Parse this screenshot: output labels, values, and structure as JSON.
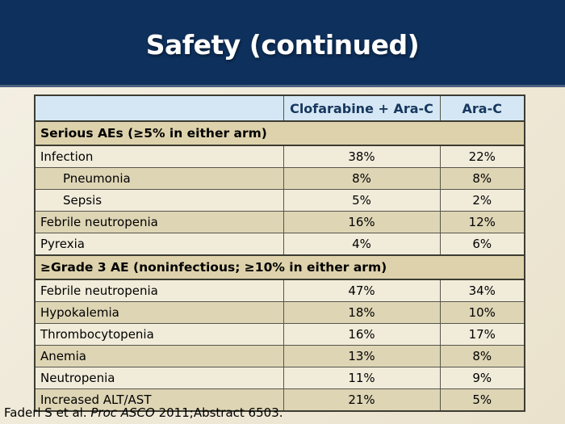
{
  "slide": {
    "title": "Safety (continued)"
  },
  "table": {
    "columns": [
      "",
      "Clofarabine + Ara-C",
      "Ara-C"
    ],
    "rows": [
      {
        "type": "section",
        "label": "Serious AEs (≥5% in either arm)"
      },
      {
        "type": "data",
        "label": "Infection",
        "indent": false,
        "values": [
          "38%",
          "22%"
        ]
      },
      {
        "type": "data",
        "label": "Pneumonia",
        "indent": true,
        "values": [
          "8%",
          "8%"
        ]
      },
      {
        "type": "data",
        "label": "Sepsis",
        "indent": true,
        "values": [
          "5%",
          "2%"
        ]
      },
      {
        "type": "data",
        "label": "Febrile neutropenia",
        "indent": false,
        "values": [
          "16%",
          "12%"
        ]
      },
      {
        "type": "data",
        "label": "Pyrexia",
        "indent": false,
        "values": [
          "4%",
          "6%"
        ]
      },
      {
        "type": "section",
        "label": "≥Grade 3 AE (noninfectious; ≥10% in either arm)"
      },
      {
        "type": "data",
        "label": "Febrile neutropenia",
        "indent": false,
        "values": [
          "47%",
          "34%"
        ]
      },
      {
        "type": "data",
        "label": "Hypokalemia",
        "indent": false,
        "values": [
          "18%",
          "10%"
        ]
      },
      {
        "type": "data",
        "label": "Thrombocytopenia",
        "indent": false,
        "values": [
          "16%",
          "17%"
        ]
      },
      {
        "type": "data",
        "label": "Anemia",
        "indent": false,
        "values": [
          "13%",
          "8%"
        ]
      },
      {
        "type": "data",
        "label": "Neutropenia",
        "indent": false,
        "values": [
          "11%",
          "9%"
        ]
      },
      {
        "type": "data",
        "label": "Increased ALT/AST",
        "indent": false,
        "values": [
          "21%",
          "5%"
        ]
      }
    ]
  },
  "citation": {
    "prefix": "Faderl S et al. ",
    "journal": "Proc ASCO",
    "suffix": " 2011;Abstract 6503."
  },
  "colors": {
    "band_navy": "#0e305c",
    "band_edge": "#4c6181",
    "title_text": "#ffffff",
    "header_cell_bg": "#d5e7f4",
    "header_text": "#17375e",
    "section_row_bg": "#ddd2ab",
    "row_light_bg": "#f1ecda",
    "row_dark_bg": "#ded5b5",
    "grid_line": "#55554a",
    "outer_border": "#3c3c33",
    "body_bg_top": "#f4f0e4",
    "body_bg_bottom": "#eae2cc",
    "footer_text": "#000000"
  }
}
